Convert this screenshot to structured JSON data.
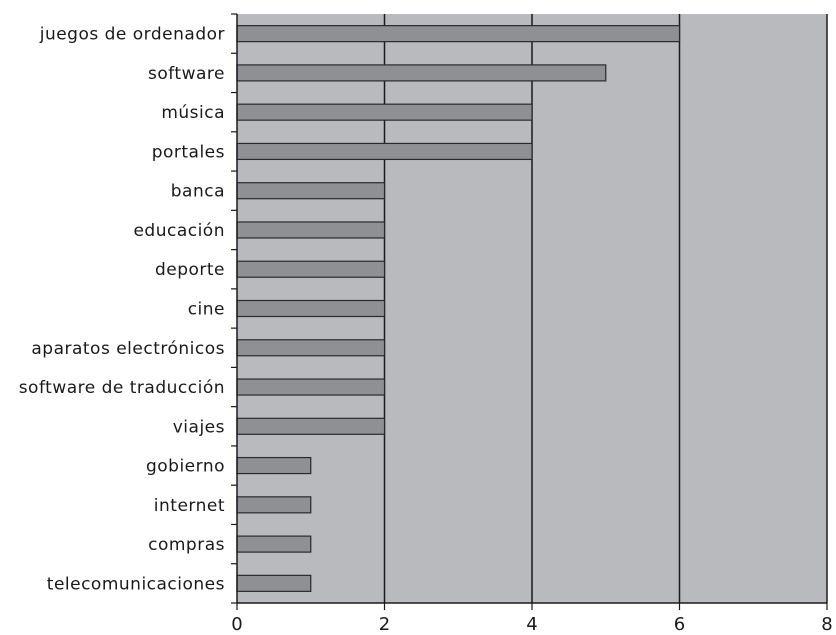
{
  "chart_data": {
    "type": "bar",
    "orientation": "horizontal",
    "categories": [
      "juegos de ordenador",
      "software",
      "música",
      "portales",
      "banca",
      "educación",
      "deporte",
      "cine",
      "aparatos electrónicos",
      "software de traducción",
      "viajes",
      "gobierno",
      "internet",
      "compras",
      "telecomunicaciones"
    ],
    "values": [
      6,
      5,
      4,
      4,
      2,
      2,
      2,
      2,
      2,
      2,
      2,
      1,
      1,
      1,
      1
    ],
    "xlim": [
      0,
      8
    ],
    "xticks": [
      "0",
      "2",
      "4",
      "6",
      "8"
    ],
    "grid": "vertical",
    "colors": {
      "plot_background": "#b9babd",
      "bar_fill": "#8f9093",
      "bar_stroke": "#2a2a2a",
      "grid": "#1a1a1a"
    }
  }
}
